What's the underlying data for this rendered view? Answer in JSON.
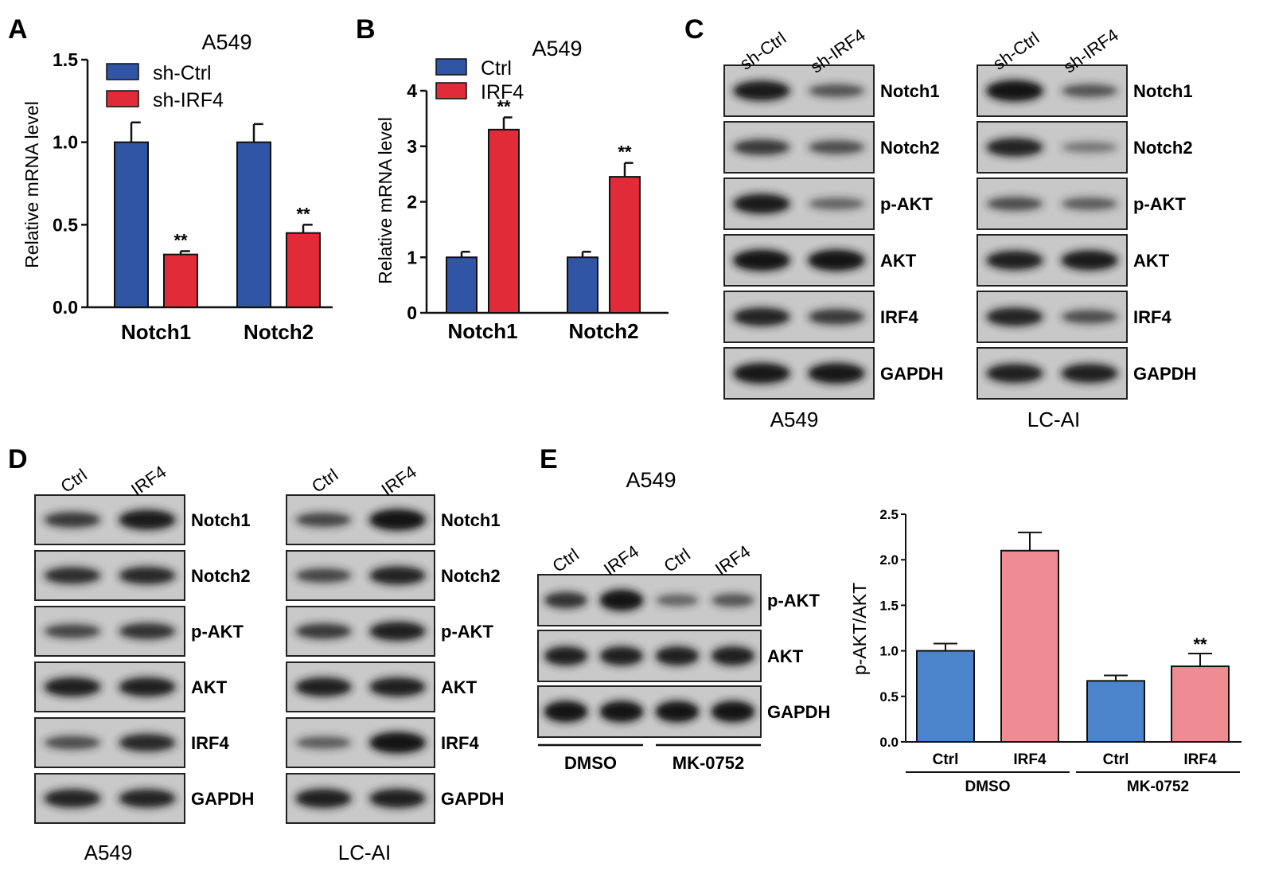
{
  "panel_labels": [
    "A",
    "B",
    "C",
    "D",
    "E"
  ],
  "colors": {
    "blue": "#2f55a4",
    "red": "#e12b38",
    "pink": "#ee8b93",
    "lightblue": "#4c84cc",
    "band": "#1a1a1a"
  },
  "chart_data": [
    {
      "id": "A",
      "type": "bar",
      "title": "A549",
      "ylabel": "Relative mRNA level",
      "categories": [
        "Notch1",
        "Notch2"
      ],
      "ylim": [
        0,
        1.5
      ],
      "yticks": [
        "0.0",
        "0.5",
        "1.0",
        "1.5"
      ],
      "series": [
        {
          "name": "sh-Ctrl",
          "color": "#2f55a4",
          "values": [
            1.0,
            1.0
          ],
          "errors": [
            0.12,
            0.11
          ],
          "sig": [
            "",
            ""
          ]
        },
        {
          "name": "sh-IRF4",
          "color": "#e12b38",
          "values": [
            0.32,
            0.45
          ],
          "errors": [
            0.02,
            0.05
          ],
          "sig": [
            "**",
            "**"
          ]
        }
      ]
    },
    {
      "id": "B",
      "type": "bar",
      "title": "A549",
      "ylabel": "Relative mRNA level",
      "categories": [
        "Notch1",
        "Notch2"
      ],
      "ylim": [
        0,
        4
      ],
      "yticks": [
        "0",
        "1",
        "2",
        "3",
        "4"
      ],
      "series": [
        {
          "name": "Ctrl",
          "color": "#2f55a4",
          "values": [
            1.0,
            1.0
          ],
          "errors": [
            0.1,
            0.1
          ],
          "sig": [
            "",
            ""
          ]
        },
        {
          "name": "IRF4",
          "color": "#e12b38",
          "values": [
            3.3,
            2.45
          ],
          "errors": [
            0.22,
            0.25
          ],
          "sig": [
            "**",
            "**"
          ]
        }
      ]
    },
    {
      "id": "E-chart",
      "type": "bar",
      "ylabel": "p-AKT/AKT",
      "categories": [
        "Ctrl",
        "IRF4",
        "Ctrl",
        "IRF4"
      ],
      "groups": [
        {
          "label": "DMSO",
          "span": [
            0,
            1
          ]
        },
        {
          "label": "MK-0752",
          "span": [
            2,
            3
          ]
        }
      ],
      "ylim": [
        0,
        2.5
      ],
      "yticks": [
        "0.0",
        "0.5",
        "1.0",
        "1.5",
        "2.0",
        "2.5"
      ],
      "values": [
        1.0,
        2.1,
        0.67,
        0.83
      ],
      "errors": [
        0.08,
        0.2,
        0.06,
        0.14
      ],
      "bar_colors": [
        "#4c84cc",
        "#ee8b93",
        "#4c84cc",
        "#ee8b93"
      ],
      "sig": [
        "",
        "",
        "",
        "**"
      ]
    }
  ],
  "blots": {
    "C_left": {
      "lanes": [
        "sh-Ctrl",
        "sh-IRF4"
      ],
      "cell_line": "A549",
      "rows": [
        {
          "label": "Notch1",
          "bands": [
            0.9,
            0.4
          ]
        },
        {
          "label": "Notch2",
          "bands": [
            0.6,
            0.45
          ]
        },
        {
          "label": "p-AKT",
          "bands": [
            0.9,
            0.3
          ]
        },
        {
          "label": "AKT",
          "bands": [
            1.0,
            1.0
          ]
        },
        {
          "label": "IRF4",
          "bands": [
            0.8,
            0.6
          ]
        },
        {
          "label": "GAPDH",
          "bands": [
            0.95,
            0.95
          ]
        }
      ]
    },
    "C_right": {
      "lanes": [
        "sh-Ctrl",
        "sh-IRF4"
      ],
      "cell_line": "LC-AI",
      "rows": [
        {
          "label": "Notch1",
          "bands": [
            1.0,
            0.4
          ]
        },
        {
          "label": "Notch2",
          "bands": [
            0.8,
            0.2
          ]
        },
        {
          "label": "p-AKT",
          "bands": [
            0.45,
            0.35
          ]
        },
        {
          "label": "AKT",
          "bands": [
            0.85,
            0.9
          ]
        },
        {
          "label": "IRF4",
          "bands": [
            0.8,
            0.45
          ]
        },
        {
          "label": "GAPDH",
          "bands": [
            0.85,
            0.85
          ]
        }
      ]
    },
    "D_left": {
      "lanes": [
        "Ctrl",
        "IRF4"
      ],
      "cell_line": "A549",
      "rows": [
        {
          "label": "Notch1",
          "bands": [
            0.6,
            0.9
          ]
        },
        {
          "label": "Notch2",
          "bands": [
            0.7,
            0.75
          ]
        },
        {
          "label": "p-AKT",
          "bands": [
            0.5,
            0.65
          ]
        },
        {
          "label": "AKT",
          "bands": [
            0.85,
            0.85
          ]
        },
        {
          "label": "IRF4",
          "bands": [
            0.45,
            0.75
          ]
        },
        {
          "label": "GAPDH",
          "bands": [
            0.8,
            0.8
          ]
        }
      ]
    },
    "D_right": {
      "lanes": [
        "Ctrl",
        "IRF4"
      ],
      "cell_line": "LC-AI",
      "rows": [
        {
          "label": "Notch1",
          "bands": [
            0.5,
            1.0
          ]
        },
        {
          "label": "Notch2",
          "bands": [
            0.5,
            0.8
          ]
        },
        {
          "label": "p-AKT",
          "bands": [
            0.6,
            0.85
          ]
        },
        {
          "label": "AKT",
          "bands": [
            0.85,
            0.85
          ]
        },
        {
          "label": "IRF4",
          "bands": [
            0.35,
            1.0
          ]
        },
        {
          "label": "GAPDH",
          "bands": [
            0.85,
            0.85
          ]
        }
      ]
    },
    "E_blot": {
      "title": "A549",
      "lanes": [
        "Ctrl",
        "IRF4",
        "Ctrl",
        "IRF4"
      ],
      "groups": [
        "DMSO",
        "MK-0752"
      ],
      "rows": [
        {
          "label": "p-AKT",
          "bands": [
            0.65,
            1.0,
            0.3,
            0.4
          ]
        },
        {
          "label": "AKT",
          "bands": [
            0.85,
            0.85,
            0.85,
            0.85
          ]
        },
        {
          "label": "GAPDH",
          "bands": [
            1.0,
            1.0,
            1.0,
            1.0
          ]
        }
      ]
    }
  }
}
